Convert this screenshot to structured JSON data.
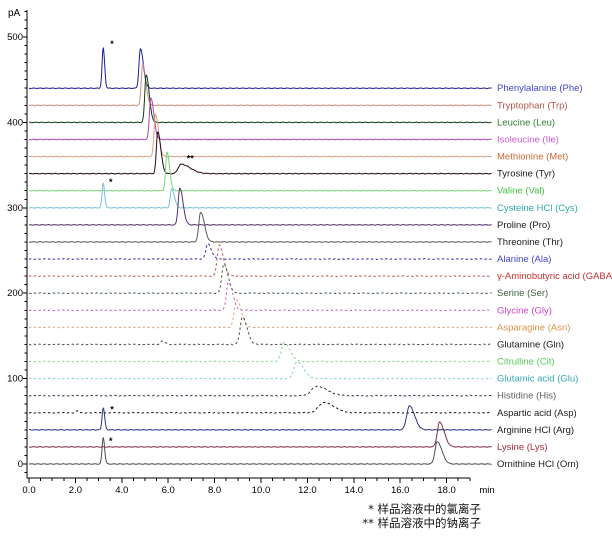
{
  "chart_data": {
    "type": "line",
    "kind": "chromatogram-stacked-offset",
    "title": "",
    "xlabel": "min",
    "ylabel": "pA",
    "xlim": [
      0,
      19.0
    ],
    "ylim": [
      0,
      530
    ],
    "grid": false,
    "x_tick_labels": [
      "0.0",
      "2.0",
      "4.0",
      "6.0",
      "8.0",
      "10.0",
      "12.0",
      "14.0",
      "16.0",
      "18.0"
    ],
    "x_tick_values": [
      0,
      2,
      4,
      6,
      8,
      10,
      12,
      14,
      16,
      18
    ],
    "x_minor_step": 0.5,
    "y_tick_labels": [
      "0",
      "100",
      "200",
      "300",
      "400",
      "500"
    ],
    "y_tick_values": [
      0,
      100,
      200,
      300,
      400,
      500
    ],
    "y_minor_step": 10,
    "legend_position": "right",
    "series": [
      {
        "id": "phe",
        "label": "Phenylalanine (Phe)",
        "baseline_pA": 440,
        "dashed": false,
        "line_color": "#1d1d8f",
        "label_color": "#4444cc",
        "peaks": [
          {
            "type": "chloride",
            "t": 3.2,
            "h": 47,
            "wl": 0.05,
            "wr": 0.06
          },
          {
            "type": "main",
            "t": 4.8,
            "h": 46,
            "wl": 0.06,
            "wr": 0.13
          }
        ]
      },
      {
        "id": "trp",
        "label": "Tryptophan (Trp)",
        "baseline_pA": 420,
        "dashed": false,
        "line_color": "#cf8d7d",
        "label_color": "#b2574a",
        "peaks": [
          {
            "type": "main",
            "t": 4.9,
            "h": 49,
            "wl": 0.06,
            "wr": 0.13
          }
        ]
      },
      {
        "id": "leu",
        "label": "Leucine (Leu)",
        "baseline_pA": 400,
        "dashed": false,
        "line_color": "#0d3d16",
        "label_color": "#2f7d33",
        "peaks": [
          {
            "type": "main",
            "t": 5.05,
            "h": 56,
            "wl": 0.06,
            "wr": 0.13
          }
        ]
      },
      {
        "id": "ile",
        "label": "Isoleucine (Ile)",
        "baseline_pA": 380,
        "dashed": false,
        "line_color": "#aa46b4",
        "label_color": "#cf5ad1",
        "peaks": [
          {
            "type": "main",
            "t": 5.25,
            "h": 49,
            "wl": 0.06,
            "wr": 0.13
          }
        ]
      },
      {
        "id": "met",
        "label": "Methionine (Met)",
        "baseline_pA": 360,
        "dashed": false,
        "line_color": "#d4a284",
        "label_color": "#cc6a33",
        "peaks": [
          {
            "type": "main",
            "t": 5.45,
            "h": 50,
            "wl": 0.06,
            "wr": 0.13
          }
        ]
      },
      {
        "id": "tyr",
        "label": "Tyrosine (Tyr)",
        "baseline_pA": 340,
        "dashed": false,
        "line_color": "#26080d",
        "label_color": "#1a1a1a",
        "peaks": [
          {
            "type": "main",
            "t": 5.55,
            "h": 49,
            "wl": 0.06,
            "wr": 0.13
          },
          {
            "type": "sodium",
            "t": 6.55,
            "h": 11,
            "wl": 0.12,
            "wr": 0.4
          }
        ]
      },
      {
        "id": "val",
        "label": "Valine (Val)",
        "baseline_pA": 320,
        "dashed": false,
        "line_color": "#79d979",
        "label_color": "#43c043",
        "peaks": [
          {
            "type": "main",
            "t": 5.95,
            "h": 45,
            "wl": 0.06,
            "wr": 0.11
          }
        ]
      },
      {
        "id": "cys",
        "label": "Cysteine HCl (Cys)",
        "baseline_pA": 300,
        "dashed": false,
        "line_color": "#79c3d9",
        "label_color": "#2fa8ad",
        "peaks": [
          {
            "type": "chloride",
            "t": 3.2,
            "h": 29,
            "wl": 0.05,
            "wr": 0.06
          },
          {
            "type": "main",
            "t": 6.15,
            "h": 22,
            "wl": 0.06,
            "wr": 0.12
          }
        ]
      },
      {
        "id": "pro",
        "label": "Proline (Pro)",
        "baseline_pA": 280,
        "dashed": false,
        "line_color": "#503070",
        "label_color": "#1a1a1a",
        "peaks": [
          {
            "type": "main",
            "t": 6.5,
            "h": 43,
            "wl": 0.07,
            "wr": 0.14
          }
        ]
      },
      {
        "id": "thr",
        "label": "Threonine (Thr)",
        "baseline_pA": 260,
        "dashed": false,
        "line_color": "#5a5a5a",
        "label_color": "#1a1a1a",
        "peaks": [
          {
            "type": "main",
            "t": 7.4,
            "h": 35,
            "wl": 0.08,
            "wr": 0.16
          }
        ]
      },
      {
        "id": "ala",
        "label": "Alanine (Ala)",
        "baseline_pA": 240,
        "dashed": true,
        "line_color": "#2d2daa",
        "label_color": "#4343cf",
        "peaks": [
          {
            "type": "main",
            "t": 7.7,
            "h": 18,
            "wl": 0.08,
            "wr": 0.16
          }
        ]
      },
      {
        "id": "gaba",
        "label": "γ-Aminobutyric acid (GABA)",
        "baseline_pA": 220,
        "dashed": true,
        "line_color": "#c45050",
        "label_color": "#cc3030",
        "peaks": [
          {
            "type": "main",
            "t": 8.2,
            "h": 36,
            "wl": 0.09,
            "wr": 0.18
          }
        ]
      },
      {
        "id": "ser",
        "label": "Serine (Ser)",
        "baseline_pA": 200,
        "dashed": true,
        "line_color": "#40603f",
        "label_color": "#40603f",
        "peaks": [
          {
            "type": "main",
            "t": 8.4,
            "h": 34,
            "wl": 0.09,
            "wr": 0.18
          }
        ]
      },
      {
        "id": "gly",
        "label": "Glycine (Gly)",
        "baseline_pA": 180,
        "dashed": true,
        "line_color": "#c95fc9",
        "label_color": "#cc47cc",
        "peaks": [
          {
            "type": "main",
            "t": 8.6,
            "h": 33,
            "wl": 0.09,
            "wr": 0.18
          }
        ]
      },
      {
        "id": "asn",
        "label": "Asparagine (Asn)",
        "baseline_pA": 160,
        "dashed": true,
        "line_color": "#d9a47e",
        "label_color": "#d9944d",
        "peaks": [
          {
            "type": "main",
            "t": 8.95,
            "h": 32,
            "wl": 0.1,
            "wr": 0.2
          }
        ]
      },
      {
        "id": "gln",
        "label": "Glutamine (Gln)",
        "baseline_pA": 140,
        "dashed": true,
        "line_color": "#4a4a4a",
        "label_color": "#1a1a1a",
        "peaks": [
          {
            "type": "minor",
            "t": 5.75,
            "h": 4,
            "wl": 0.08,
            "wr": 0.12
          },
          {
            "type": "main",
            "t": 9.2,
            "h": 32,
            "wl": 0.1,
            "wr": 0.2
          }
        ]
      },
      {
        "id": "cit",
        "label": "Citrulline (Cit)",
        "baseline_pA": 120,
        "dashed": true,
        "line_color": "#86d98b",
        "label_color": "#57cb5c",
        "peaks": [
          {
            "type": "main",
            "t": 11.0,
            "h": 22,
            "wl": 0.12,
            "wr": 0.25
          }
        ]
      },
      {
        "id": "glu",
        "label": "Glutamic acid (Glu)",
        "baseline_pA": 100,
        "dashed": true,
        "line_color": "#8bcbdb",
        "label_color": "#35a9b5",
        "peaks": [
          {
            "type": "main",
            "t": 11.55,
            "h": 20,
            "wl": 0.13,
            "wr": 0.28
          }
        ]
      },
      {
        "id": "his",
        "label": "Histidine (His)",
        "baseline_pA": 80,
        "dashed": true,
        "line_color": "#33334d",
        "label_color": "#606060",
        "peaks": [
          {
            "type": "main",
            "t": 12.4,
            "h": 11,
            "wl": 0.22,
            "wr": 0.45
          }
        ]
      },
      {
        "id": "asp",
        "label": "Aspartic acid (Asp)",
        "baseline_pA": 60,
        "dashed": true,
        "line_color": "#1a1a1a",
        "label_color": "#1a1a1a",
        "peaks": [
          {
            "type": "minor",
            "t": 2.1,
            "h": 2.5,
            "wl": 0.05,
            "wr": 0.06
          },
          {
            "type": "main",
            "t": 12.7,
            "h": 12,
            "wl": 0.22,
            "wr": 0.45
          }
        ]
      },
      {
        "id": "arg",
        "label": "Arginine HCl (Arg)",
        "baseline_pA": 40,
        "dashed": false,
        "line_color": "#2d3580",
        "label_color": "#1a1a1a",
        "peaks": [
          {
            "type": "chloride",
            "t": 3.2,
            "h": 26,
            "wl": 0.05,
            "wr": 0.06
          },
          {
            "type": "main",
            "t": 16.4,
            "h": 28,
            "wl": 0.12,
            "wr": 0.22
          }
        ]
      },
      {
        "id": "lys",
        "label": "Lysine (Lys)",
        "baseline_pA": 20,
        "dashed": false,
        "line_color": "#803040",
        "label_color": "#a33038",
        "peaks": [
          {
            "type": "main",
            "t": 17.7,
            "h": 29,
            "wl": 0.1,
            "wr": 0.2
          }
        ]
      },
      {
        "id": "orn",
        "label": "Ornithine HCl (Orn)",
        "baseline_pA": 0,
        "dashed": false,
        "line_color": "#4d4d4d",
        "label_color": "#1a1a1a",
        "peaks": [
          {
            "type": "chloride",
            "t": 3.2,
            "h": 31,
            "wl": 0.05,
            "wr": 0.06
          },
          {
            "type": "main",
            "t": 17.6,
            "h": 26,
            "wl": 0.1,
            "wr": 0.2
          }
        ]
      }
    ],
    "markers": [
      {
        "symbol": "*",
        "t": 3.5,
        "pA": 492
      },
      {
        "symbol": "*",
        "t": 3.45,
        "pA": 330
      },
      {
        "symbol": "*",
        "t": 3.5,
        "pA": 64
      },
      {
        "symbol": "*",
        "t": 3.45,
        "pA": 27
      },
      {
        "symbol": "**",
        "t": 6.8,
        "pA": 358
      }
    ],
    "footnotes": [
      "* 样品溶液中的氯离子",
      "** 样品溶液中的钠离子"
    ]
  }
}
